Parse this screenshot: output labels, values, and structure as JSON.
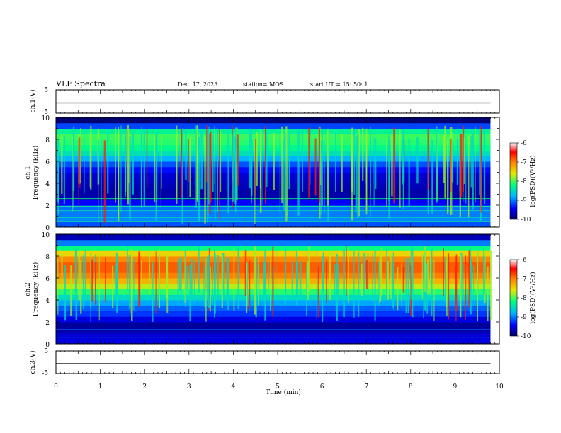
{
  "header": {
    "title": "VLF Spectra",
    "date": "Dec. 17, 2023",
    "station": "station= MOS",
    "start_ut": "start  UT  =   15: 50: 1"
  },
  "colors": {
    "scale": [
      "#000066",
      "#0000ff",
      "#00b4ff",
      "#00ff80",
      "#e6e600",
      "#ff8000",
      "#ff0000",
      "#ffffff"
    ]
  },
  "chart_data": [
    {
      "type": "line",
      "name": "ch1-amplitude",
      "ylabel": "ch.1(V)",
      "ylim": [
        -5,
        5
      ],
      "yticks": [
        "5",
        "-5"
      ],
      "xlim": [
        0,
        10
      ],
      "series": [
        {
          "x": [
            0,
            9.8
          ],
          "values": [
            0,
            0
          ]
        }
      ]
    },
    {
      "type": "heatmap",
      "name": "ch1-spectrogram",
      "ylabel": "ch.1\nFrequency  (kHz)",
      "xlim": [
        0,
        10
      ],
      "ylim": [
        0,
        10
      ],
      "yticks": [
        "0",
        "2",
        "4",
        "6",
        "8",
        "10"
      ],
      "data_x_end": 9.8,
      "colorbar": {
        "label": "log(PSD)(V²/Hz)",
        "ticks": [
          "-6",
          "-7",
          "-8",
          "-9",
          "-10"
        ],
        "range": [
          -10,
          -6
        ]
      },
      "profile_khz": [
        0,
        0.5,
        1,
        1.5,
        2,
        2.5,
        3,
        3.5,
        4,
        4.5,
        5,
        5.5,
        6,
        6.5,
        7,
        7.5,
        8,
        8.5,
        9,
        9.5,
        10
      ],
      "profile_log_psd": [
        -9.4,
        -8.9,
        -9.0,
        -9.0,
        -9.1,
        -9.8,
        -9.7,
        -9.8,
        -9.6,
        -9.7,
        -9.5,
        -9.3,
        -9.0,
        -8.6,
        -8.3,
        -8.2,
        -8.0,
        -8.1,
        -8.5,
        -9.9,
        -10
      ]
    },
    {
      "type": "heatmap",
      "name": "ch2-spectrogram",
      "ylabel": "ch.2\nFrequency  (kHz)",
      "xlim": [
        0,
        10
      ],
      "ylim": [
        0,
        10
      ],
      "yticks": [
        "0",
        "2",
        "4",
        "6",
        "8",
        "10"
      ],
      "data_x_end": 9.8,
      "colorbar": {
        "label": "log(PSD)(V²/Hz)",
        "ticks": [
          "-6",
          "-7",
          "-8",
          "-9",
          "-10"
        ],
        "range": [
          -10,
          -6
        ]
      },
      "profile_khz": [
        0,
        0.5,
        1,
        1.5,
        2,
        2.5,
        3,
        3.5,
        4,
        4.5,
        5,
        5.5,
        6,
        6.5,
        7,
        7.5,
        8,
        8.5,
        9,
        9.5,
        10
      ],
      "profile_log_psd": [
        -9.6,
        -9.5,
        -9.7,
        -9.8,
        -9.8,
        -9.3,
        -9.2,
        -9.0,
        -8.7,
        -8.3,
        -7.9,
        -7.5,
        -7.1,
        -6.9,
        -6.8,
        -6.9,
        -7.2,
        -7.8,
        -8.6,
        -9.4,
        -10
      ]
    },
    {
      "type": "line",
      "name": "ch3-amplitude",
      "ylabel": "ch.3(V)",
      "ylim": [
        -5,
        5
      ],
      "yticks": [
        "5",
        "-5"
      ],
      "xlim": [
        0,
        10
      ],
      "xlabel": "Time  (min)",
      "xticks": [
        "0",
        "1",
        "2",
        "3",
        "4",
        "5",
        "6",
        "7",
        "8",
        "9",
        "10"
      ],
      "series": [
        {
          "x": [
            0,
            9.8
          ],
          "values": [
            0,
            0
          ]
        }
      ]
    }
  ]
}
